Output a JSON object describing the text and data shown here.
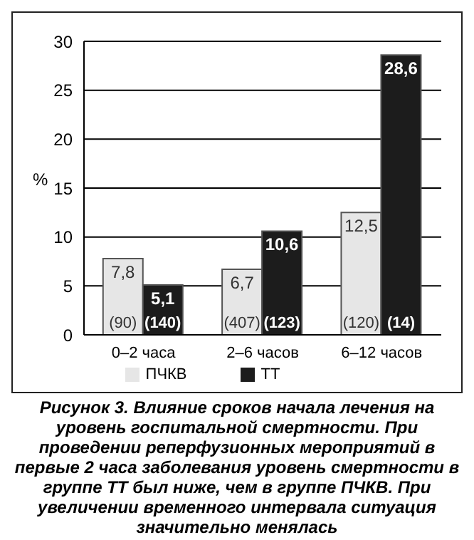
{
  "chart_data": {
    "type": "bar",
    "categories": [
      "0–2 часа",
      "2–6 часов",
      "6–12 часов"
    ],
    "series": [
      {
        "name": "ПЧКВ",
        "color": "#e6e6e6",
        "values": [
          7.8,
          6.7,
          12.5
        ],
        "value_labels": [
          "7,8",
          "6,7",
          "12,5"
        ]
      },
      {
        "name": "ТТ",
        "color": "#1c1c1c",
        "values": [
          5.1,
          10.6,
          28.6
        ],
        "value_labels": [
          "5,1",
          "10,6",
          "28,6"
        ]
      }
    ],
    "ylabel": "%",
    "ylim": [
      0,
      30
    ],
    "yticks": [
      0,
      5,
      10,
      15,
      20,
      25,
      30
    ],
    "grid": "y",
    "legend": "bottom",
    "annotations": [
      {
        "text": "(90)",
        "x": "0–2 часа",
        "y": 0
      },
      {
        "text": "(140)",
        "x": "0–2 часа",
        "y": 0
      },
      {
        "text": "(407)",
        "x": "2–6 часов",
        "y": 0
      },
      {
        "text": "(123)",
        "x": "2–6 часов",
        "y": 0
      },
      {
        "text": "(120)",
        "x": "6–12 часов",
        "y": 0
      },
      {
        "text": "(14)",
        "x": "6–12 часов",
        "y": 0
      },
      "Рисунок 3. Влияние сроков начала лечения на уровень госпитальной смертности. При проведении реперфузионных мероприятий в первые 2 часа заболевания уровень смертности в группе ТТ был ниже, чем в группе ПЧКВ. При увеличении временного интервала ситуация значительно менялась"
    ]
  }
}
